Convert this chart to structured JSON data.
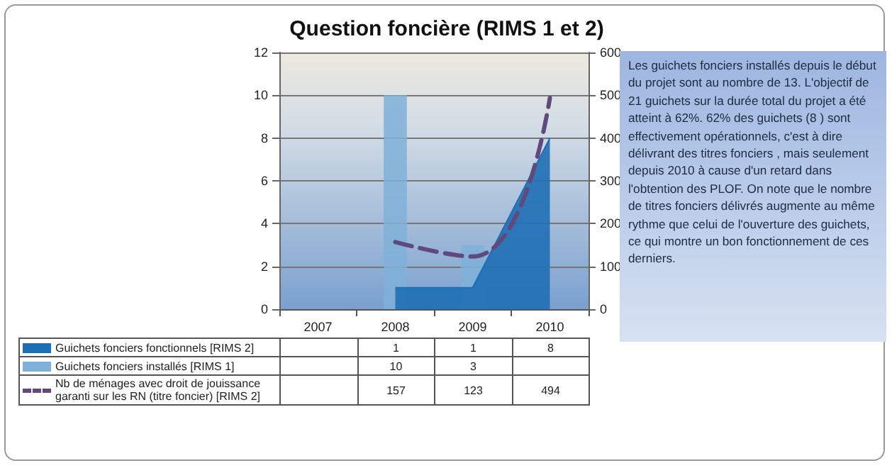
{
  "chart_data": {
    "type": "bar",
    "title": "Question foncière (RIMS 1 et 2)",
    "categories": [
      "2007",
      "2008",
      "2009",
      "2010"
    ],
    "series": [
      {
        "name": "Guichets fonciers fonctionnels [RIMS 2]",
        "type": "area",
        "color": "#1f6fb5",
        "values": [
          null,
          1,
          1,
          8
        ]
      },
      {
        "name": "Guichets fonciers installés [RIMS 1]",
        "type": "bar",
        "color": "#7fb0d8",
        "values": [
          null,
          10,
          3,
          null
        ]
      },
      {
        "name": "Nb de ménages avec droit de jouissance garanti sur les RN (titre foncier) [RIMS 2]",
        "type": "line",
        "axis": "y2",
        "line_style": "dashed",
        "marker": "none",
        "color": "#604a7b",
        "values": [
          null,
          157,
          123,
          494
        ]
      }
    ],
    "ylim": [
      0,
      12
    ],
    "yticks": [
      0,
      2,
      4,
      6,
      8,
      10,
      12
    ],
    "y2lim": [
      0,
      600
    ],
    "y2ticks": [
      0,
      100,
      200,
      300,
      400,
      500,
      600
    ],
    "grid": "y",
    "legend": "bottom left",
    "data_labels": true,
    "annotations": [
      "Les guichets fonciers installés depuis le début du projet sont au nombre de 13. L'objectif de 21 guichets sur la durée total du projet a été atteint à 62%. 62% des guichets (8 ) sont effectivement opérationnels, c'est à dire délivrant des titres fonciers , mais seulement depuis 2010 à cause d'un retard dans l'obtention des PLOF. On note que le nombre de titres fonciers délivrés augmente au même rythme que celui de l'ouverture des guichets, ce qui montre un bon fonctionnement de ces derniers."
    ]
  }
}
